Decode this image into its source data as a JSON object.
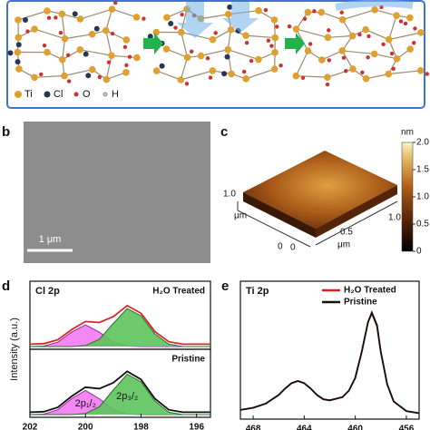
{
  "panel_a": {
    "legend": [
      "Ti",
      "Cl",
      "O",
      "H"
    ]
  },
  "panel_b": {
    "letter": "b",
    "scale_bar": "1 μm"
  },
  "panel_c": {
    "letter": "c",
    "colorbar_unit": "nm",
    "colorbar_ticks": [
      "2.0",
      "1.5",
      "1.0",
      "0.5",
      "0"
    ],
    "left_axis_ticks": [
      "1.0",
      "0"
    ],
    "left_axis_label": "μm",
    "bottom_axis_ticks": [
      "0",
      "0.5",
      "1.0"
    ],
    "bottom_axis_label": "μm"
  },
  "panel_d": {
    "letter": "d"
  },
  "panel_e": {
    "letter": "e"
  },
  "chart_data": [
    {
      "type": "area",
      "title": "Cl 2p",
      "annotation": "H₂O Treated",
      "ylabel": "Intensity (a.u.)",
      "x": [
        202,
        201.5,
        201,
        200.5,
        200,
        199.5,
        199,
        198.5,
        198,
        197.5,
        197,
        196.5,
        196,
        195.5
      ],
      "series": [
        {
          "color": "#9a2a9a",
          "fill": "#f27af2",
          "values": [
            0,
            0.01,
            0.09,
            0.3,
            0.45,
            0.3,
            0.09,
            0.01,
            0,
            0,
            0,
            0,
            0,
            0
          ]
        },
        {
          "color": "#2e6b2e",
          "fill": "#5cc45c",
          "values": [
            0,
            0,
            0,
            0,
            0.02,
            0.15,
            0.48,
            0.79,
            0.64,
            0.26,
            0.05,
            0,
            0,
            0
          ]
        },
        {
          "color": "#d62828",
          "values": [
            0.05,
            0.06,
            0.14,
            0.35,
            0.52,
            0.5,
            0.62,
            0.85,
            0.69,
            0.31,
            0.1,
            0.05,
            0.05,
            0.05
          ]
        }
      ],
      "xlim": [
        202,
        195.5
      ],
      "ylim": [
        0,
        1
      ]
    },
    {
      "type": "area",
      "annotation": "Pristine",
      "x": [
        202,
        201.5,
        201,
        200.5,
        200,
        199.5,
        199,
        198.5,
        198,
        197.5,
        197,
        196.5,
        196,
        195.5
      ],
      "series": [
        {
          "label": "2p₁/₂",
          "color": "#9a2a9a",
          "fill": "#f27af2",
          "values": [
            0,
            0.01,
            0.1,
            0.33,
            0.5,
            0.33,
            0.1,
            0.01,
            0,
            0,
            0,
            0,
            0,
            0
          ]
        },
        {
          "label": "2p₃/₂",
          "color": "#2e6b2e",
          "fill": "#5cc45c",
          "values": [
            0,
            0,
            0,
            0,
            0.02,
            0.16,
            0.51,
            0.84,
            0.68,
            0.28,
            0.05,
            0,
            0,
            0
          ]
        },
        {
          "color": "#111111",
          "values": [
            0.05,
            0.06,
            0.15,
            0.38,
            0.57,
            0.54,
            0.66,
            0.9,
            0.73,
            0.33,
            0.1,
            0.05,
            0.05,
            0.05
          ]
        }
      ],
      "xlim": [
        202,
        195.5
      ],
      "ylim": [
        0,
        1
      ],
      "xticks": [
        202,
        200,
        198,
        196
      ]
    },
    {
      "type": "line",
      "title": "Ti 2p",
      "x": [
        469,
        468,
        467,
        466,
        465.5,
        465,
        464.5,
        464,
        463.5,
        463,
        462.5,
        462,
        461,
        460.5,
        460,
        459.5,
        459,
        458.7,
        458.3,
        458,
        457.5,
        457,
        456,
        455
      ],
      "series": [
        {
          "name": "H₂O Treated",
          "color": "#e02020",
          "values": [
            0.06,
            0.08,
            0.12,
            0.2,
            0.26,
            0.31,
            0.33,
            0.31,
            0.26,
            0.2,
            0.16,
            0.15,
            0.18,
            0.24,
            0.36,
            0.6,
            0.88,
            0.96,
            0.84,
            0.6,
            0.3,
            0.14,
            0.05,
            0.03
          ]
        },
        {
          "name": "Pristine",
          "color": "#111111",
          "values": [
            0.06,
            0.08,
            0.12,
            0.2,
            0.26,
            0.31,
            0.33,
            0.31,
            0.26,
            0.2,
            0.16,
            0.15,
            0.18,
            0.24,
            0.36,
            0.6,
            0.88,
            0.97,
            0.85,
            0.6,
            0.3,
            0.14,
            0.05,
            0.03
          ]
        }
      ],
      "xlim": [
        469,
        455
      ],
      "ylim": [
        0,
        1.1
      ],
      "xticks": [
        468,
        464,
        460,
        456
      ]
    }
  ]
}
